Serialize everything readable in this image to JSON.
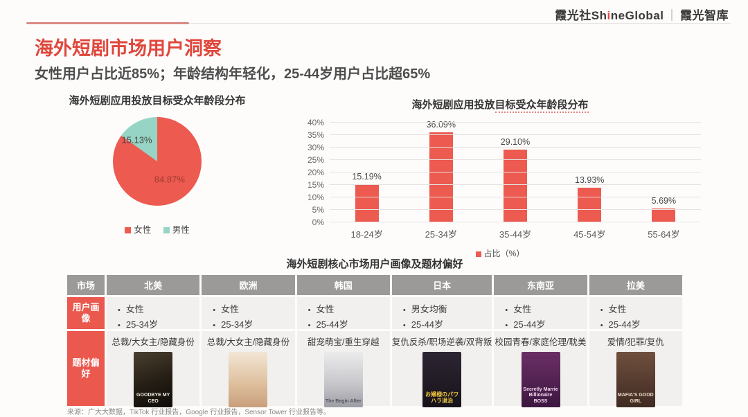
{
  "header": {
    "logo_cn": "霞光社",
    "logo_en_pre": "Sh",
    "logo_en_i": "i",
    "logo_en_post": "neGlobal",
    "logo_divider": "｜",
    "logo_suffix": "霞光智库"
  },
  "title": "海外短剧市场用户洞察",
  "subtitle": "女性用户占比近85%；年龄结构年轻化，25-44岁用户占比超65%",
  "colors": {
    "accent_red": "#ec5a50",
    "teal": "#96d5c5",
    "table_header_gray": "#9b9a98",
    "table_label_red": "#ea584e",
    "cell_bg": "#f2f0ee"
  },
  "chart_data": [
    {
      "type": "pie",
      "title": "海外短剧应用投放目标受众年龄段分布",
      "labels": [
        "女性",
        "男性"
      ],
      "values": [
        84.87,
        15.13
      ],
      "value_labels": [
        "84.87%",
        "15.13%"
      ],
      "colors": [
        "#ec5a50",
        "#96d5c5"
      ],
      "legend_position": "bottom"
    },
    {
      "type": "bar",
      "title": "海外短剧应用投放目标受众年龄段分布",
      "title_prefix": "海外短剧应用投放",
      "title_underlined": "目标受众年龄段分布",
      "categories": [
        "18-24岁",
        "25-34岁",
        "35-44岁",
        "45-54岁",
        "55-64岁"
      ],
      "values": [
        15.19,
        36.09,
        29.1,
        13.93,
        5.69
      ],
      "value_labels": [
        "15.19%",
        "36.09%",
        "29.10%",
        "13.93%",
        "5.69%"
      ],
      "legend": "占比（%）",
      "xlabel": "",
      "ylabel": "",
      "ylim": [
        0,
        40
      ],
      "ytick_step": 5,
      "ytick_suffix": "%",
      "bar_color": "#ec5a50",
      "grid": true,
      "legend_position": "bottom"
    }
  ],
  "table": {
    "title": "海外短剧核心市场用户画像及题材偏好",
    "corner_header": "市场",
    "row_headers": [
      "用户画像",
      "题材偏好"
    ],
    "markets": [
      "北美",
      "欧洲",
      "韩国",
      "日本",
      "东南亚",
      "拉美"
    ],
    "profiles": [
      [
        "女性",
        "25-34岁"
      ],
      [
        "女性",
        "25-34岁"
      ],
      [
        "女性",
        "25-44岁"
      ],
      [
        "男女均衡",
        "25-44岁"
      ],
      [
        "女性",
        "25-44岁"
      ],
      [
        "女性",
        "25-44岁"
      ]
    ],
    "genres": [
      "总裁/大女主/隐藏身份",
      "总裁/大女主/隐藏身份",
      "甜宠萌宝/重生穿越",
      "复仇反杀/职场逆袭/双背叛",
      "校园青春/家庭伦理/耽美",
      "爱情/犯罪/复仇"
    ],
    "posters": [
      {
        "name": "poster-north-america",
        "caption": "GOODBYE MY CEO",
        "style": "dark-gold"
      },
      {
        "name": "poster-europe",
        "caption": "",
        "style": "cream"
      },
      {
        "name": "poster-korea",
        "caption": "The Begin After",
        "style": "light-gray"
      },
      {
        "name": "poster-japan",
        "caption": "お嬢様のパワハラ退治",
        "style": "dark-navy"
      },
      {
        "name": "poster-southeast-asia",
        "caption": "Secretly Marrie Billionaire BOSS",
        "style": "purple"
      },
      {
        "name": "poster-latam",
        "caption": "MAFIA'S GOOD GIRL",
        "style": "sepia"
      }
    ]
  },
  "footer": {
    "source": "来源：广大大数据，TikTok 行业报告，Google 行业报告，Sensor Tower 行业报告等。"
  }
}
